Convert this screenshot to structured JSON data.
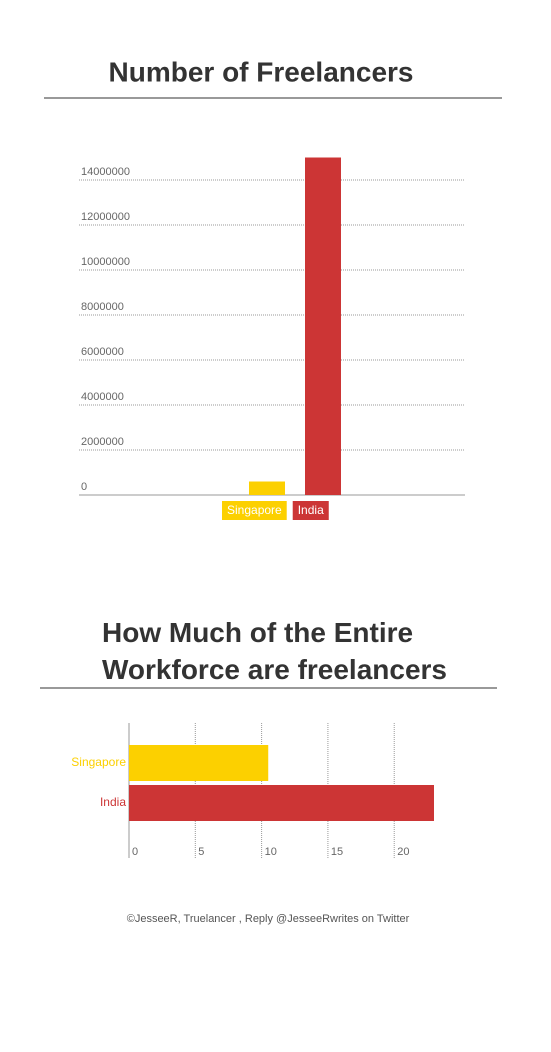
{
  "chart_data": [
    {
      "type": "bar",
      "title": "Number of Freelancers",
      "series": [
        {
          "name": "Singapore",
          "color": "#fcd000",
          "values": [
            600000
          ]
        },
        {
          "name": "India",
          "color": "#cc3535",
          "values": [
            15000000
          ]
        }
      ],
      "ylim": [
        0,
        15000000
      ],
      "yticks": [
        0,
        2000000,
        4000000,
        6000000,
        8000000,
        10000000,
        12000000,
        14000000
      ],
      "grid": true,
      "legend": "bottom"
    },
    {
      "type": "hbar",
      "title": "How Much of the Entire Workforce are freelancers",
      "categories": [
        "Singapore",
        "India"
      ],
      "colors": [
        "#fcd000",
        "#cc3535"
      ],
      "values": [
        10.5,
        23
      ],
      "xlim": [
        0,
        23
      ],
      "xticks": [
        0,
        5,
        10,
        15,
        20
      ],
      "grid": true
    }
  ],
  "footer": "©JesseeR, Truelancer , Reply @JesseeRwrites on Twitter"
}
